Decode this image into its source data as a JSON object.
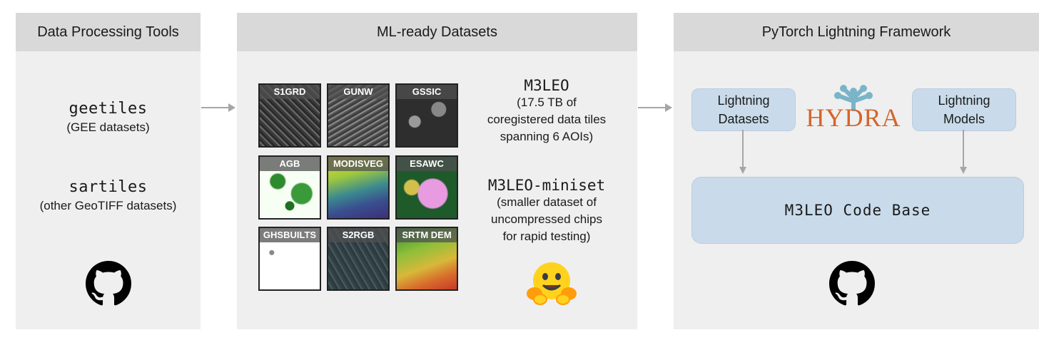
{
  "panels": {
    "tools": {
      "title": "Data Processing Tools",
      "items": [
        {
          "name": "geetiles",
          "desc": "(GEE datasets)"
        },
        {
          "name": "sartiles",
          "desc": "(other GeoTIFF datasets)"
        }
      ],
      "icon": "github-icon"
    },
    "datasets": {
      "title": "ML-ready Datasets",
      "tiles": [
        "S1GRD",
        "GUNW",
        "GSSIC",
        "AGB",
        "MODISVEG",
        "ESAWC",
        "GHSBUILTS",
        "S2RGB",
        "SRTM DEM"
      ],
      "m3leo": {
        "name": "M3LEO",
        "lines": [
          "(17.5 TB of",
          "coregistered data tiles",
          "spanning 6 AOIs)"
        ]
      },
      "miniset": {
        "name": "M3LEO-miniset",
        "lines": [
          "(smaller dataset of",
          "uncompressed chips",
          "for rapid testing)"
        ]
      },
      "icon": "hugging-face-icon"
    },
    "framework": {
      "title": "PyTorch Lightning Framework",
      "lightning_datasets": [
        "Lightning",
        "Datasets"
      ],
      "lightning_models": [
        "Lightning",
        "Models"
      ],
      "hydra": "HYDRA",
      "codebase": "M3LEO Code Base",
      "icon": "github-icon"
    }
  },
  "colors": {
    "panel": "#efefef",
    "header": "#d9d9d9",
    "box": "#c9dbea",
    "hydra": "#d4652a",
    "hydra_leaf": "#7ab4c8",
    "arrow": "#a6a6a6"
  }
}
